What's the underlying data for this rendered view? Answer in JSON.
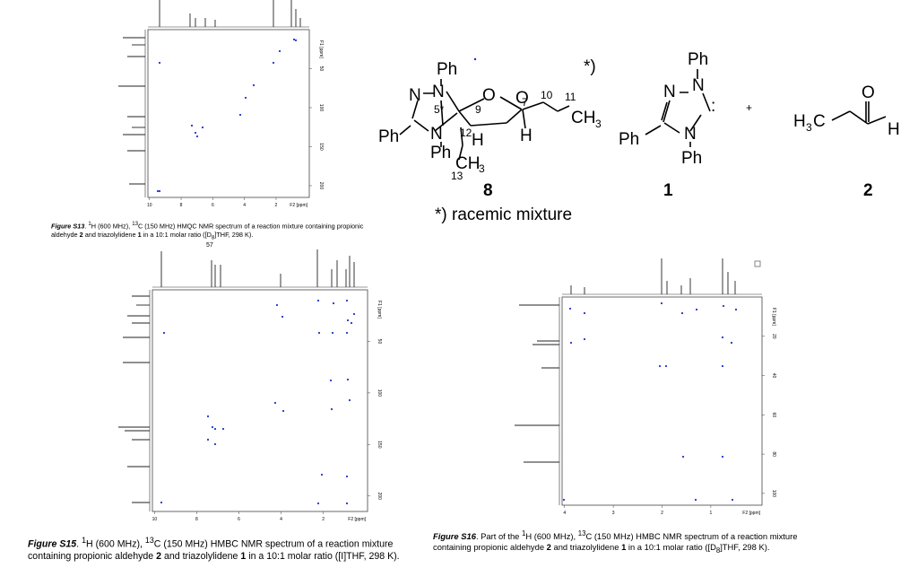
{
  "spectra": [
    {
      "yaxis": "F1 [ppm]",
      "yticks": [
        "50",
        "100",
        "150",
        "200"
      ],
      "xticks": [
        "10",
        "8",
        "6",
        "4",
        "2"
      ],
      "xaxis": "F2 [ppm]"
    },
    {
      "yaxis": "F1 [ppm]",
      "yticks": [
        "50",
        "100",
        "150",
        "200"
      ],
      "xticks": [
        "10",
        "8",
        "6",
        "4",
        "2"
      ],
      "xaxis": "F2 [ppm]"
    },
    {
      "yaxis": "F1 [ppm]",
      "yticks": [
        "20",
        "40",
        "60",
        "80",
        "100"
      ],
      "xticks": [
        "4",
        "3",
        "2",
        "1"
      ],
      "xaxis": "F2 [ppm]"
    }
  ],
  "captions": [
    {
      "parts": [
        "Figure S13",
        ". ",
        "1",
        "H (600 MHz), ",
        "13",
        "C (150 MHz) HMQC NMR spectrum of a reaction mixture containing propionic aldehyde ",
        "2",
        " and triazolylidene ",
        "1",
        " in a 10:1 molar ratio ([D",
        "8",
        "]THF, 298 K)."
      ]
    },
    {
      "parts": [
        "Figure S15",
        ". ",
        "1",
        "H (600 MHz), ",
        "13",
        "C (150 MHz) HMBC NMR spectrum of a reaction mixture containing propionic aldehyde ",
        "2",
        " and triazolylidene ",
        "1",
        " in a 10:1 molar ratio ([",
        "I",
        "]THF, 298 K)."
      ]
    },
    {
      "parts": [
        "Figure S16",
        ". Part of the ",
        "1",
        "H (600 MHz), ",
        "13",
        "C (150 MHz) HMBC NMR spectrum of a reaction mixture containing propionic aldehyde ",
        "2",
        " and triazolylidene ",
        "1",
        " in a 10:1 molar ratio ([D",
        "8",
        "]THF, 298 K)."
      ]
    }
  ],
  "page_number": "57",
  "structures": {
    "compound8": {
      "labels": [
        "Ph",
        "N",
        "N",
        "5*",
        "O",
        "O",
        "7",
        "10",
        "11",
        "CH",
        "3",
        "9",
        "Ph",
        "N",
        "12",
        "H",
        "H",
        "Ph",
        "CH",
        "3",
        "13"
      ],
      "number": "8",
      "note_mark": "*)",
      "note": "*) racemic mixture"
    },
    "compound1": {
      "labels": [
        "Ph",
        "N",
        "N",
        ":",
        "Ph",
        "N",
        "Ph"
      ],
      "number": "1"
    },
    "plus": "+",
    "compound2": {
      "labels": [
        "H",
        "3",
        "C",
        "O",
        "H"
      ],
      "number": "2"
    }
  }
}
